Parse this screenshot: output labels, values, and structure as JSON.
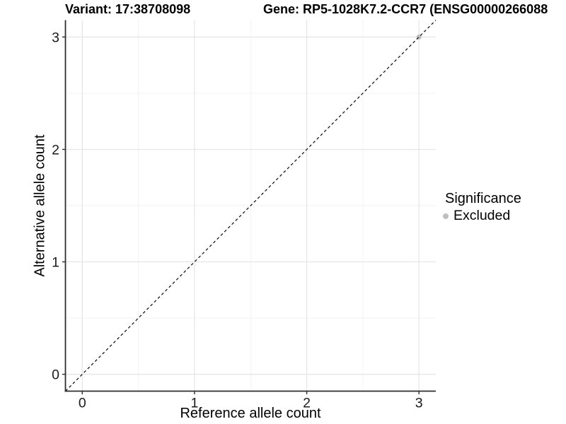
{
  "chart_data": {
    "type": "scatter",
    "title_left": "Variant: 17:38708098",
    "title_right": "Gene: RP5-1028K7.2-CCR7 (ENSG00000266088",
    "xlabel": "Reference allele count",
    "ylabel": "Alternative allele count",
    "xlim": [
      -0.15,
      3.15
    ],
    "ylim": [
      -0.15,
      3.15
    ],
    "x_ticks": [
      0,
      1,
      2,
      3
    ],
    "y_ticks": [
      0,
      1,
      2,
      3
    ],
    "x_tick_labels": [
      "0",
      "1",
      "2",
      "3"
    ],
    "y_tick_labels": [
      "0",
      "1",
      "2",
      "3"
    ],
    "x_minor_ticks": [
      0.5,
      1.5,
      2.5
    ],
    "y_minor_ticks": [
      0.5,
      1.5,
      2.5
    ],
    "grid": true,
    "legend_position": "right",
    "points": [
      {
        "x": 3,
        "y": 3,
        "series": "Excluded"
      }
    ],
    "reference_line": {
      "type": "abline",
      "slope": 1,
      "intercept": 0,
      "linetype": "dashed",
      "color": "#111111"
    },
    "legend": {
      "title": "Significance",
      "items": [
        {
          "label": "Excluded",
          "color": "#bebebe"
        }
      ]
    },
    "colors": {
      "grid_major": "#e4e4e4",
      "grid_minor": "#f1f1f1",
      "axis_line": "#2e2e2e",
      "tick_text": "#1a1a1a",
      "point_excluded": "#bebebe"
    }
  }
}
